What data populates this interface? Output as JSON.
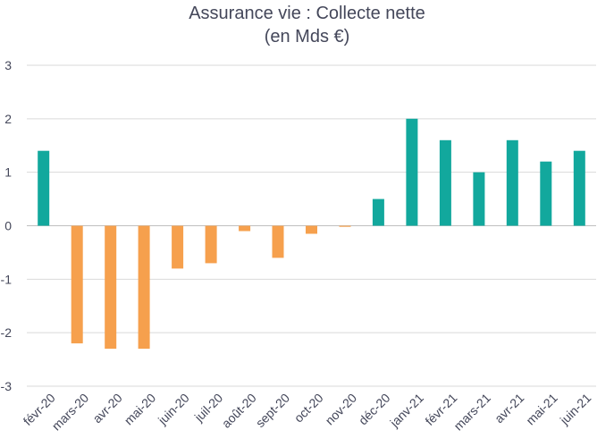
{
  "chart_data": {
    "type": "bar",
    "title_line1": "Assurance vie : Collecte nette",
    "title_line2": "(en Mds €)",
    "categories": [
      "févr-20",
      "mars-20",
      "avr-20",
      "mai-20",
      "juin-20",
      "juil-20",
      "août-20",
      "sept-20",
      "oct-20",
      "nov-20",
      "déc-20",
      "janv-21",
      "févr-21",
      "mars-21",
      "avr-21",
      "mai-21",
      "juin-21"
    ],
    "values": [
      1.4,
      -2.2,
      -2.3,
      -2.3,
      -0.8,
      -0.7,
      -0.1,
      -0.6,
      -0.15,
      -0.02,
      0.5,
      2.0,
      1.6,
      1.0,
      1.6,
      1.2,
      1.4
    ],
    "bar_colors": [
      "#12a89d",
      "#f6a04d",
      "#f6a04d",
      "#f6a04d",
      "#f6a04d",
      "#f6a04d",
      "#f6a04d",
      "#f6a04d",
      "#f6a04d",
      "#f6a04d",
      "#12a89d",
      "#12a89d",
      "#12a89d",
      "#12a89d",
      "#12a89d",
      "#12a89d",
      "#12a89d"
    ],
    "yticks": [
      "3",
      "2",
      "1",
      "0",
      "-1",
      "-2",
      "-3"
    ],
    "ylim": [
      -3,
      3
    ],
    "grid": true,
    "xlabel": "",
    "ylabel": ""
  }
}
